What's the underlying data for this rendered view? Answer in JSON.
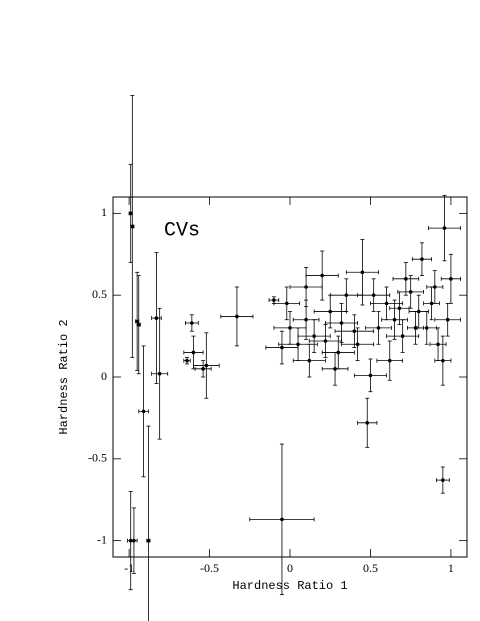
{
  "chart_data": {
    "type": "scatter",
    "annotation": "CVs",
    "xlabel": "Hardness Ratio 1",
    "ylabel": "Hardness Ratio 2",
    "xlim": [
      -1.1,
      1.1
    ],
    "ylim": [
      -1.1,
      1.1
    ],
    "xticks": [
      -1,
      -0.5,
      0,
      0.5,
      1
    ],
    "yticks": [
      -1,
      -0.5,
      0,
      0.5,
      1
    ],
    "color": "#000000",
    "x": [
      -0.99,
      -0.98,
      -0.99,
      -0.97,
      -0.95,
      -0.94,
      -0.91,
      -0.88,
      -0.83,
      -0.81,
      -0.64,
      -0.61,
      -0.6,
      -0.54,
      -0.52,
      -0.33,
      -0.05,
      -0.1,
      0.95,
      0.48,
      0.96,
      0.0,
      0.05,
      0.1,
      0.15,
      0.2,
      0.25,
      0.3,
      0.35,
      0.4,
      0.45,
      0.5,
      0.55,
      0.6,
      0.65,
      0.7,
      0.75,
      0.8,
      0.85,
      0.9,
      1.0,
      0.98,
      0.92,
      0.82,
      0.72,
      -0.05,
      -0.02,
      0.12,
      0.22,
      0.32,
      0.42,
      0.62,
      0.52,
      0.68,
      0.78,
      0.88,
      0.95,
      0.1,
      0.28
    ],
    "y": [
      1.0,
      0.92,
      -1.0,
      -1.0,
      0.34,
      0.32,
      -0.21,
      -1.0,
      0.36,
      0.02,
      0.1,
      0.33,
      0.15,
      0.05,
      0.07,
      0.37,
      -0.87,
      0.47,
      -0.63,
      -0.28,
      0.91,
      0.3,
      0.2,
      0.35,
      0.25,
      0.62,
      0.4,
      0.15,
      0.5,
      0.28,
      0.64,
      0.01,
      0.3,
      0.45,
      0.35,
      0.25,
      0.52,
      0.4,
      0.3,
      0.55,
      0.6,
      0.35,
      0.2,
      0.72,
      0.6,
      0.18,
      0.45,
      0.1,
      0.22,
      0.33,
      0.2,
      0.1,
      0.5,
      0.42,
      0.3,
      0.45,
      0.1,
      0.55,
      0.05
    ],
    "xerr": [
      0.01,
      0.01,
      0.02,
      0.02,
      0.01,
      0.01,
      0.03,
      0.01,
      0.03,
      0.05,
      0.02,
      0.04,
      0.06,
      0.05,
      0.08,
      0.1,
      0.2,
      0.03,
      0.04,
      0.06,
      0.1,
      0.1,
      0.12,
      0.08,
      0.1,
      0.1,
      0.1,
      0.1,
      0.1,
      0.12,
      0.1,
      0.1,
      0.08,
      0.1,
      0.08,
      0.1,
      0.08,
      0.06,
      0.06,
      0.05,
      0.06,
      0.08,
      0.05,
      0.06,
      0.08,
      0.1,
      0.08,
      0.1,
      0.1,
      0.1,
      0.1,
      0.08,
      0.1,
      0.06,
      0.05,
      0.05,
      0.05,
      0.1,
      0.08
    ],
    "yerr": [
      0.3,
      0.8,
      0.3,
      0.2,
      0.3,
      0.3,
      0.4,
      0.7,
      0.4,
      0.4,
      0.02,
      0.05,
      0.1,
      0.05,
      0.2,
      0.18,
      0.46,
      0.02,
      0.08,
      0.15,
      0.2,
      0.1,
      0.1,
      0.12,
      0.1,
      0.15,
      0.1,
      0.1,
      0.1,
      0.1,
      0.2,
      0.1,
      0.1,
      0.1,
      0.12,
      0.1,
      0.1,
      0.1,
      0.1,
      0.1,
      0.15,
      0.1,
      0.1,
      0.1,
      0.1,
      0.1,
      0.1,
      0.1,
      0.1,
      0.12,
      0.1,
      0.12,
      0.1,
      0.1,
      0.1,
      0.1,
      0.15,
      0.12,
      0.1
    ]
  }
}
